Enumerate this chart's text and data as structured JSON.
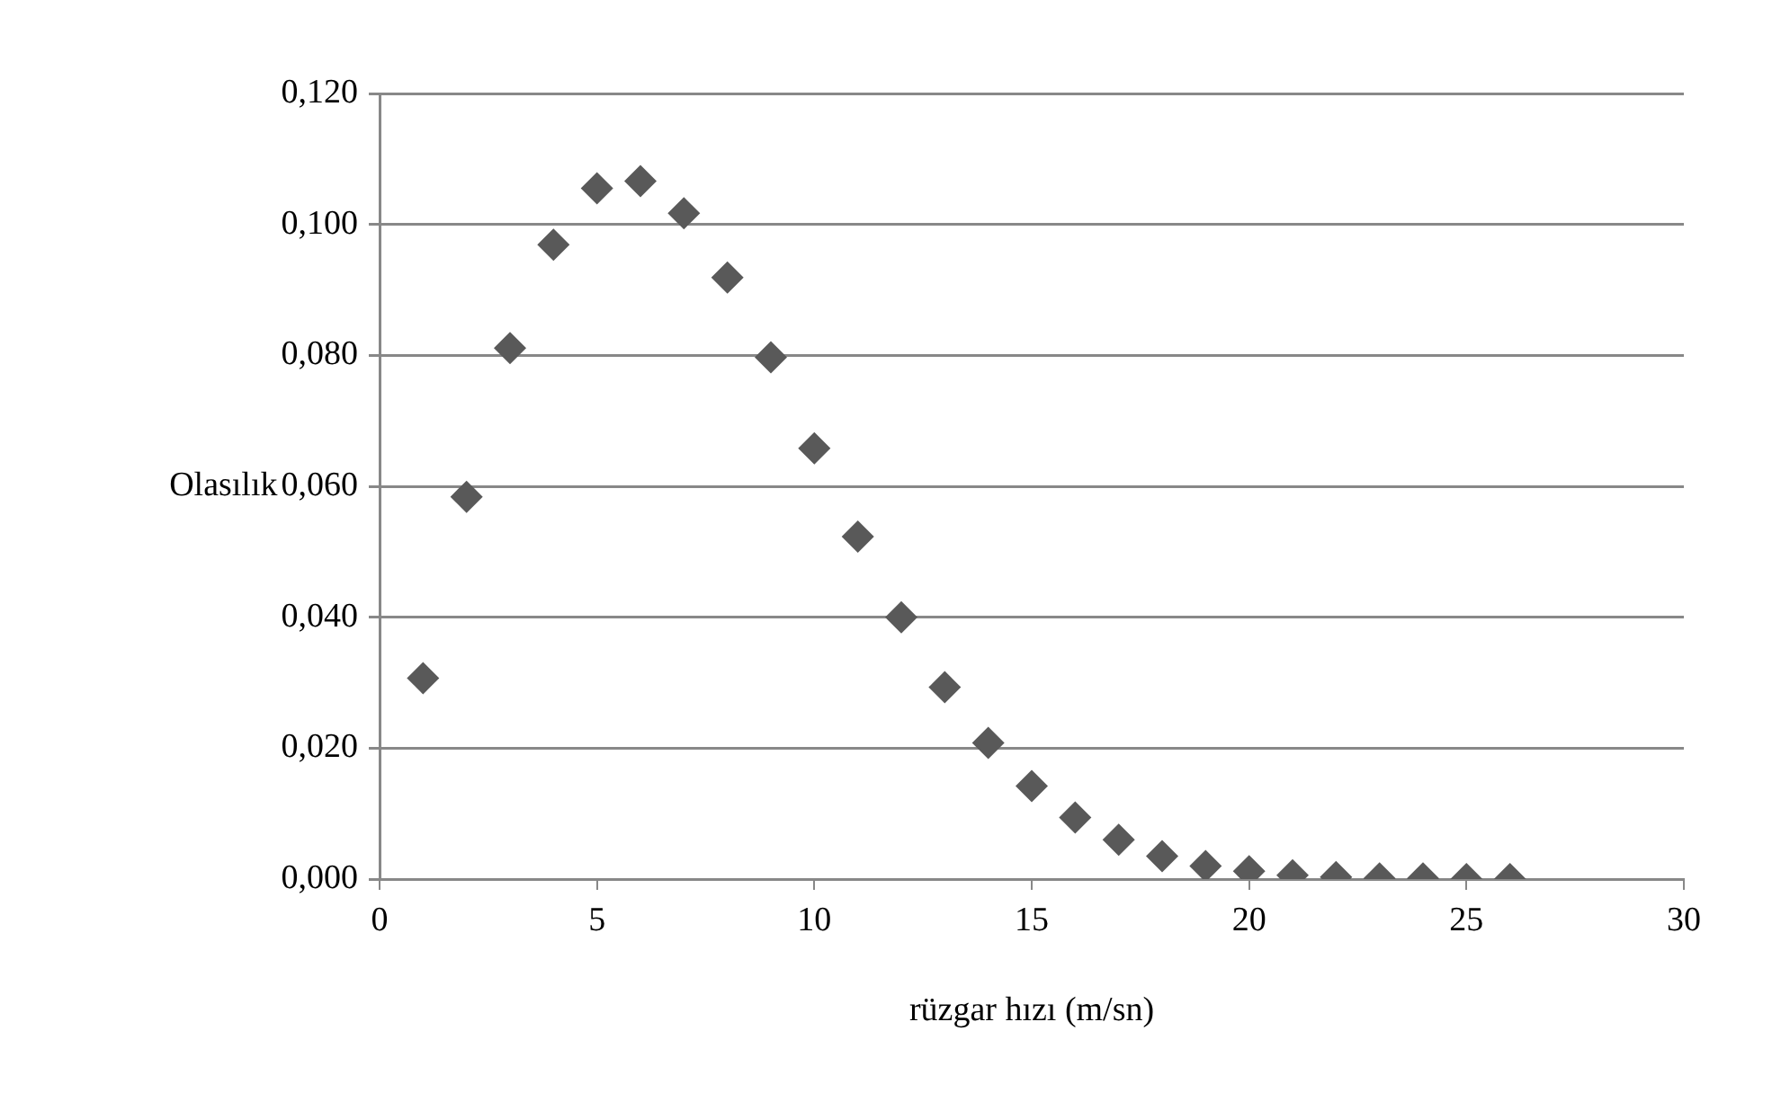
{
  "chart_data": {
    "type": "scatter",
    "xlabel": "rüzgar hızı (m/sn)",
    "ylabel": "Olasılık",
    "x": [
      1,
      2,
      3,
      4,
      5,
      6,
      7,
      8,
      9,
      10,
      11,
      12,
      13,
      14,
      15,
      16,
      17,
      18,
      19,
      20,
      21,
      22,
      23,
      24,
      25,
      26
    ],
    "series": [
      {
        "color": "#595959",
        "values": [
          0.0307,
          0.0584,
          0.0811,
          0.0969,
          0.1055,
          0.1066,
          0.1017,
          0.0919,
          0.0797,
          0.0658,
          0.0523,
          0.04,
          0.0293,
          0.0208,
          0.0142,
          0.0094,
          0.006,
          0.0035,
          0.002,
          0.0012,
          0.0006,
          0.0003,
          0.0001,
          0.0001,
          0.0,
          0.0
        ]
      }
    ],
    "xlim": [
      0,
      30
    ],
    "xticks": [
      0,
      5,
      10,
      15,
      20,
      25,
      30
    ],
    "ylim": [
      0,
      0.12
    ],
    "yticks": [
      {
        "value": 0,
        "label": "0,000"
      },
      {
        "value": 0.02,
        "label": "0,020"
      },
      {
        "value": 0.04,
        "label": "0,040"
      },
      {
        "value": 0.06,
        "label": "0,060"
      },
      {
        "value": 0.08,
        "label": "0,080"
      },
      {
        "value": 0.1,
        "label": "0,100"
      },
      {
        "value": 0.12,
        "label": "0,120"
      }
    ],
    "grid": "y",
    "legend": false,
    "marker": "diamond"
  }
}
